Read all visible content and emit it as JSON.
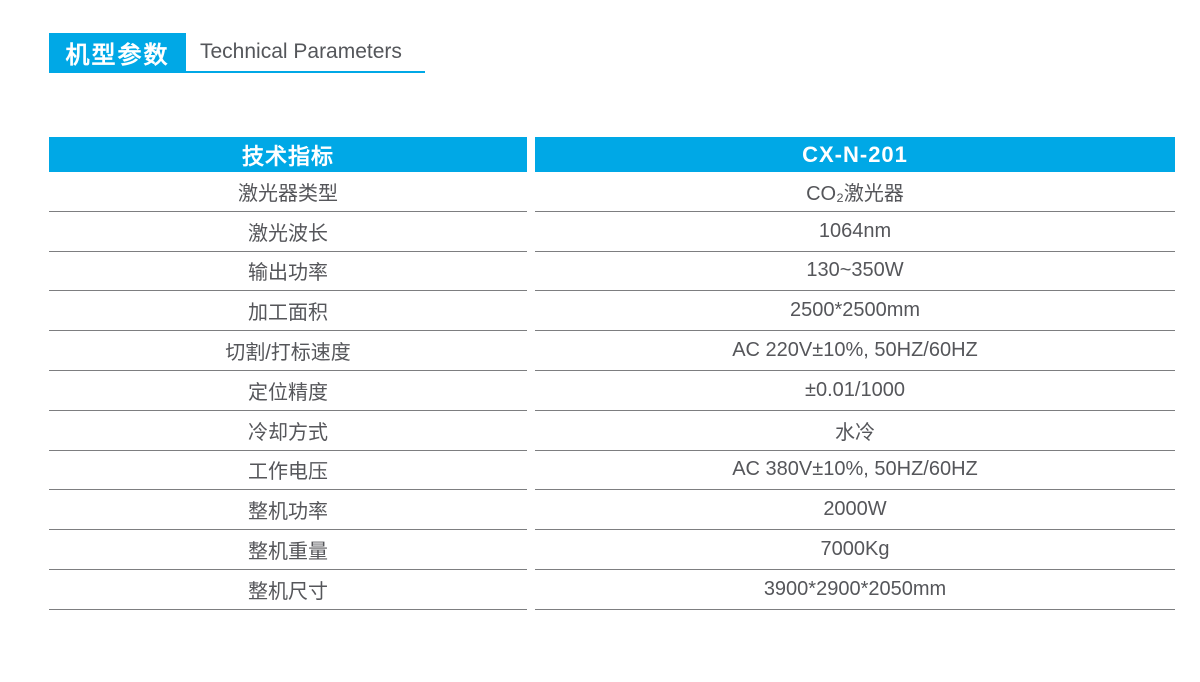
{
  "header": {
    "title_cn": "机型参数",
    "title_en": "Technical Parameters"
  },
  "table": {
    "columns": [
      "技术指标",
      "CX-N-201"
    ],
    "rows": [
      {
        "label": "激光器类型",
        "value": "CO₂激光器"
      },
      {
        "label": "激光波长",
        "value": "1064nm"
      },
      {
        "label": "输出功率",
        "value": "130~350W"
      },
      {
        "label": "加工面积",
        "value": "2500*2500mm"
      },
      {
        "label": "切割/打标速度",
        "value": "AC 220V±10%, 50HZ/60HZ"
      },
      {
        "label": "定位精度",
        "value": "±0.01/1000"
      },
      {
        "label": "冷却方式",
        "value": "水冷"
      },
      {
        "label": "工作电压",
        "value": "AC 380V±10%, 50HZ/60HZ"
      },
      {
        "label": "整机功率",
        "value": "2000W"
      },
      {
        "label": "整机重量",
        "value": "7000Kg"
      },
      {
        "label": "整机尺寸",
        "value": "3900*2900*2050mm"
      }
    ]
  },
  "colors": {
    "accent": "#00A8E6",
    "text": "#55565A",
    "divider": "#7D7E80"
  }
}
